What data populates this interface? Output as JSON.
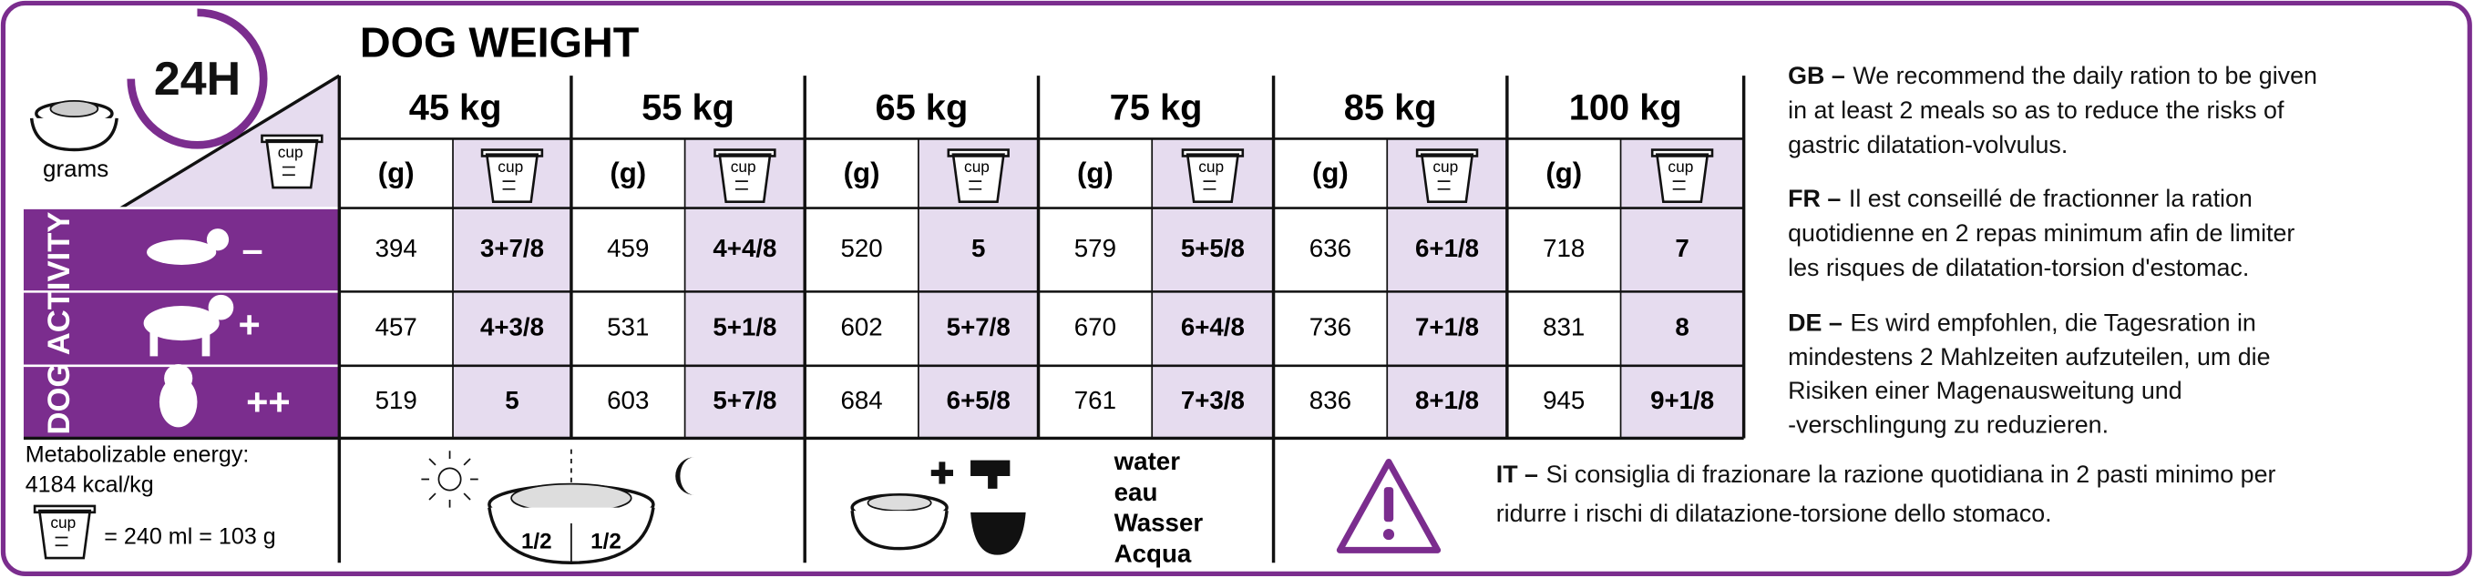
{
  "header": {
    "title": "DOG WEIGHT",
    "badge": "24H",
    "grams_label": "grams",
    "cup_label": "cup",
    "gram_unit": "(g)"
  },
  "weights": [
    "45 kg",
    "55 kg",
    "65 kg",
    "75 kg",
    "85 kg",
    "100 kg"
  ],
  "activity": {
    "label": "DOG ACTIVITY",
    "levels": [
      "–",
      "+",
      "++"
    ]
  },
  "table": {
    "rows": [
      [
        394,
        "3+7/8",
        459,
        "4+4/8",
        520,
        "5",
        579,
        "5+5/8",
        636,
        "6+1/8",
        718,
        "7"
      ],
      [
        457,
        "4+3/8",
        531,
        "5+1/8",
        602,
        "5+7/8",
        670,
        "6+4/8",
        736,
        "7+1/8",
        831,
        "8"
      ],
      [
        519,
        "5",
        603,
        "5+7/8",
        684,
        "6+5/8",
        761,
        "7+3/8",
        836,
        "8+1/8",
        945,
        "9+1/8"
      ]
    ]
  },
  "energy": {
    "label": "Metabolizable energy:",
    "value": "4184 kcal/kg",
    "cup_equivalent": "= 240 ml = 103 g"
  },
  "bowl": {
    "half_left": "1/2",
    "half_right": "1/2"
  },
  "water": [
    "water",
    "eau",
    "Wasser",
    "Acqua"
  ],
  "notes": [
    {
      "code": "GB –",
      "lines": [
        "We recommend the daily ration to be given",
        "in at least 2 meals so as to reduce the risks of",
        "gastric dilatation-volvulus."
      ]
    },
    {
      "code": "FR –",
      "lines": [
        "Il est conseillé de fractionner la ration",
        "quotidienne en 2 repas minimum afin de limiter",
        "les risques de dilatation-torsion d'estomac."
      ]
    },
    {
      "code": "DE –",
      "lines": [
        "Es wird empfohlen, die Tagesration in",
        "mindestens 2 Mahlzeiten aufzuteilen, um die",
        "Risiken einer Magenausweitung und",
        "-verschlingung zu reduzieren."
      ]
    },
    {
      "code": "IT –",
      "lines": [
        "Si consiglia di frazionare la razione quotidiana in 2 pasti minimo per",
        "ridurre i rischi di dilatazione-torsione dello stomaco."
      ]
    }
  ]
}
